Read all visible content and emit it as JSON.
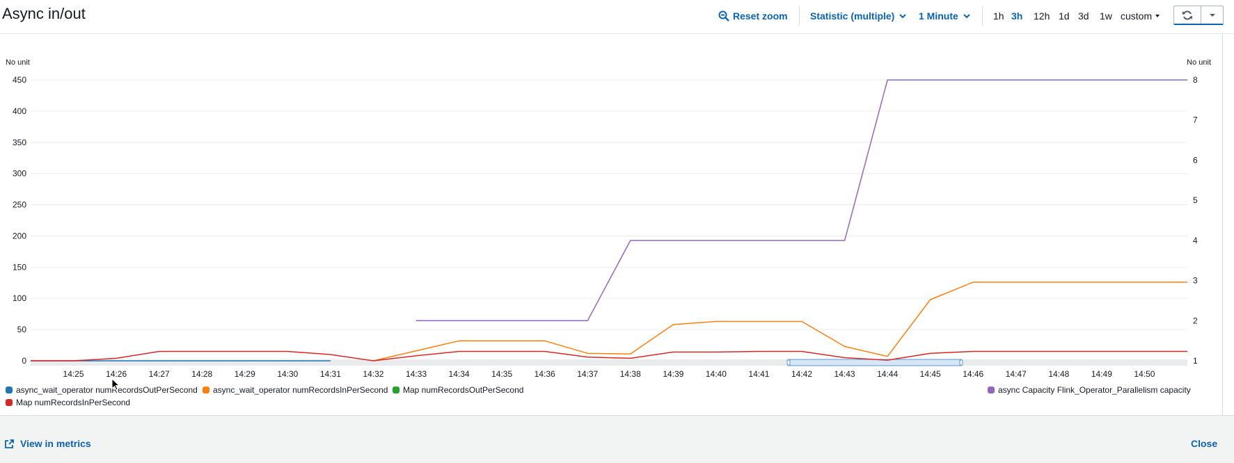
{
  "widget": {
    "title": "Async in/out",
    "reset_zoom": "Reset zoom",
    "statistic": "Statistic (multiple)",
    "period": "1 Minute",
    "ranges": [
      "1h",
      "3h",
      "12h",
      "1d",
      "3d",
      "1w"
    ],
    "active_range": "3h",
    "custom": "custom"
  },
  "footer": {
    "view_in_metrics": "View in metrics",
    "close": "Close"
  },
  "colors": {
    "accent": "#0a62b3",
    "series_blue": "#1f77b4",
    "series_orange": "#ff7f0e",
    "series_green": "#2ca02c",
    "series_red": "#d62728",
    "series_purple": "#9467bd"
  },
  "chart_data": {
    "type": "line",
    "y_left_label": "No unit",
    "y_right_label": "No unit",
    "y_left_ticks": [
      0,
      50,
      100,
      150,
      200,
      250,
      300,
      350,
      400,
      450
    ],
    "y_right_ticks": [
      1,
      2,
      3,
      4,
      5,
      6,
      7,
      8
    ],
    "ylim_left": [
      0,
      450
    ],
    "ylim_right": [
      1,
      8
    ],
    "x_ticks": [
      "14:25",
      "14:26",
      "14:27",
      "14:28",
      "14:29",
      "14:30",
      "14:31",
      "14:32",
      "14:33",
      "14:34",
      "14:35",
      "14:36",
      "14:37",
      "14:38",
      "14:39",
      "14:40",
      "14:41",
      "14:42",
      "14:43",
      "14:44",
      "14:45",
      "14:46",
      "14:47",
      "14:48",
      "14:49",
      "14:50"
    ],
    "x_start": "14:24",
    "x_end": "14:51",
    "grid": true,
    "series": [
      {
        "name": "async_wait_operator numRecordsOutPerSecond",
        "color": "#1f77b4",
        "axis": "left",
        "x": [
          "14:24",
          "14:31"
        ],
        "y": [
          0,
          0
        ]
      },
      {
        "name": "async_wait_operator numRecordsInPerSecond",
        "color": "#ff7f0e",
        "axis": "left",
        "x": [
          "14:32",
          "14:34",
          "14:36",
          "14:37",
          "14:38",
          "14:39",
          "14:40",
          "14:41",
          "14:42",
          "14:43",
          "14:44",
          "14:45",
          "14:46",
          "14:47",
          "14:48",
          "14:49",
          "14:50",
          "14:51"
        ],
        "y": [
          0,
          32,
          32,
          12,
          11,
          58,
          63,
          63,
          63,
          23,
          7,
          98,
          126,
          126,
          126,
          126,
          126,
          126
        ]
      },
      {
        "name": "Map numRecordsOutPerSecond",
        "color": "#2ca02c",
        "axis": "left",
        "x": [],
        "y": []
      },
      {
        "name": "Map numRecordsInPerSecond",
        "color": "#d62728",
        "axis": "left",
        "x": [
          "14:24",
          "14:25",
          "14:26",
          "14:27",
          "14:28",
          "14:29",
          "14:30",
          "14:31",
          "14:32",
          "14:33",
          "14:34",
          "14:35",
          "14:36",
          "14:37",
          "14:38",
          "14:39",
          "14:40",
          "14:41",
          "14:42",
          "14:43",
          "14:44",
          "14:45",
          "14:46",
          "14:47",
          "14:48",
          "14:49",
          "14:50",
          "14:51"
        ],
        "y": [
          0,
          0,
          4,
          15,
          15,
          15,
          15,
          10,
          0,
          8,
          15,
          15,
          15,
          6,
          4,
          14,
          14,
          15,
          15,
          5,
          1,
          12,
          15,
          15,
          15,
          15,
          15,
          15
        ]
      },
      {
        "name": "async Capacity Flink_Operator_Parallelism capacity",
        "color": "#9467bd",
        "axis": "right",
        "x": [
          "14:33",
          "14:37",
          "14:38",
          "14:43",
          "14:44",
          "14:51"
        ],
        "y": [
          2,
          2,
          4,
          4,
          8,
          8
        ]
      }
    ],
    "legend": "bottom"
  }
}
